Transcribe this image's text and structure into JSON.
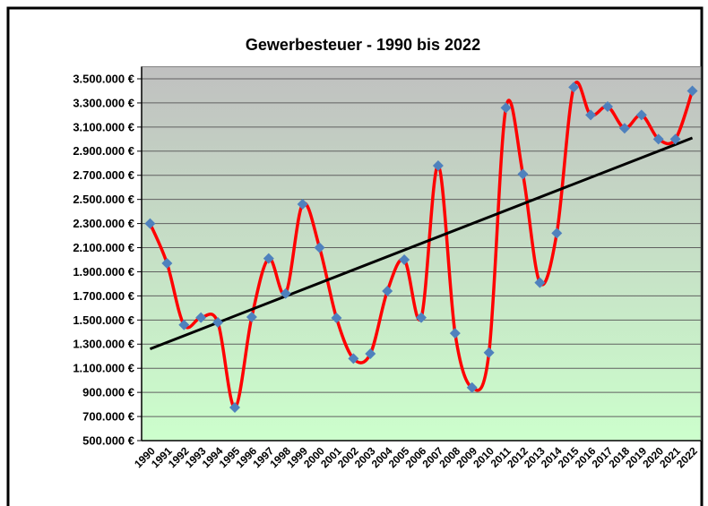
{
  "chart_data": {
    "type": "line",
    "title": "Gewerbesteuer - 1990 bis 2022",
    "categories": [
      "1990",
      "1991",
      "1992",
      "1993",
      "1994",
      "1995",
      "1996",
      "1997",
      "1998",
      "1999",
      "2000",
      "2001",
      "2002",
      "2003",
      "2004",
      "2005",
      "2006",
      "2007",
      "2008",
      "2009",
      "2010",
      "2011",
      "2012",
      "2013",
      "2014",
      "2015",
      "2016",
      "2017",
      "2018",
      "2019",
      "2020",
      "2021",
      "2022"
    ],
    "series": [
      {
        "color": "#ff0000",
        "marker_color": "#4f81bd",
        "values": [
          2300000,
          1970000,
          1460000,
          1520000,
          1480000,
          775000,
          1525000,
          2010000,
          1720000,
          2460000,
          2100000,
          1517000,
          1180000,
          1220000,
          1740000,
          2000000,
          1520000,
          2780000,
          1390000,
          940000,
          1230000,
          3260000,
          2710000,
          1810000,
          2220000,
          3430000,
          3200000,
          3270000,
          3090000,
          3200000,
          3000000,
          3000000,
          3400000
        ]
      }
    ],
    "trendline": {
      "color": "#000000",
      "start": 1260000,
      "end": 3010000
    },
    "ylim": [
      500000,
      3600000
    ],
    "yticks": [
      {
        "value": 500000,
        "label": "500.000 €"
      },
      {
        "value": 700000,
        "label": "700.000 €"
      },
      {
        "value": 900000,
        "label": "900.000 €"
      },
      {
        "value": 1100000,
        "label": "1.100.000 €"
      },
      {
        "value": 1300000,
        "label": "1.300.000 €"
      },
      {
        "value": 1500000,
        "label": "1.500.000 €"
      },
      {
        "value": 1700000,
        "label": "1.700.000 €"
      },
      {
        "value": 1900000,
        "label": "1.900.000 €"
      },
      {
        "value": 2100000,
        "label": "2.100.000 €"
      },
      {
        "value": 2300000,
        "label": "2.300.000 €"
      },
      {
        "value": 2500000,
        "label": "2.500.000 €"
      },
      {
        "value": 2700000,
        "label": "2.700.000 €"
      },
      {
        "value": 2900000,
        "label": "2.900.000 €"
      },
      {
        "value": 3100000,
        "label": "3.100.000 €"
      },
      {
        "value": 3300000,
        "label": "3.300.000 €"
      },
      {
        "value": 3500000,
        "label": "3.500.000 €"
      }
    ],
    "grid": true,
    "background_top": "#c0c0c0",
    "background_bottom": "#ccffcc"
  }
}
